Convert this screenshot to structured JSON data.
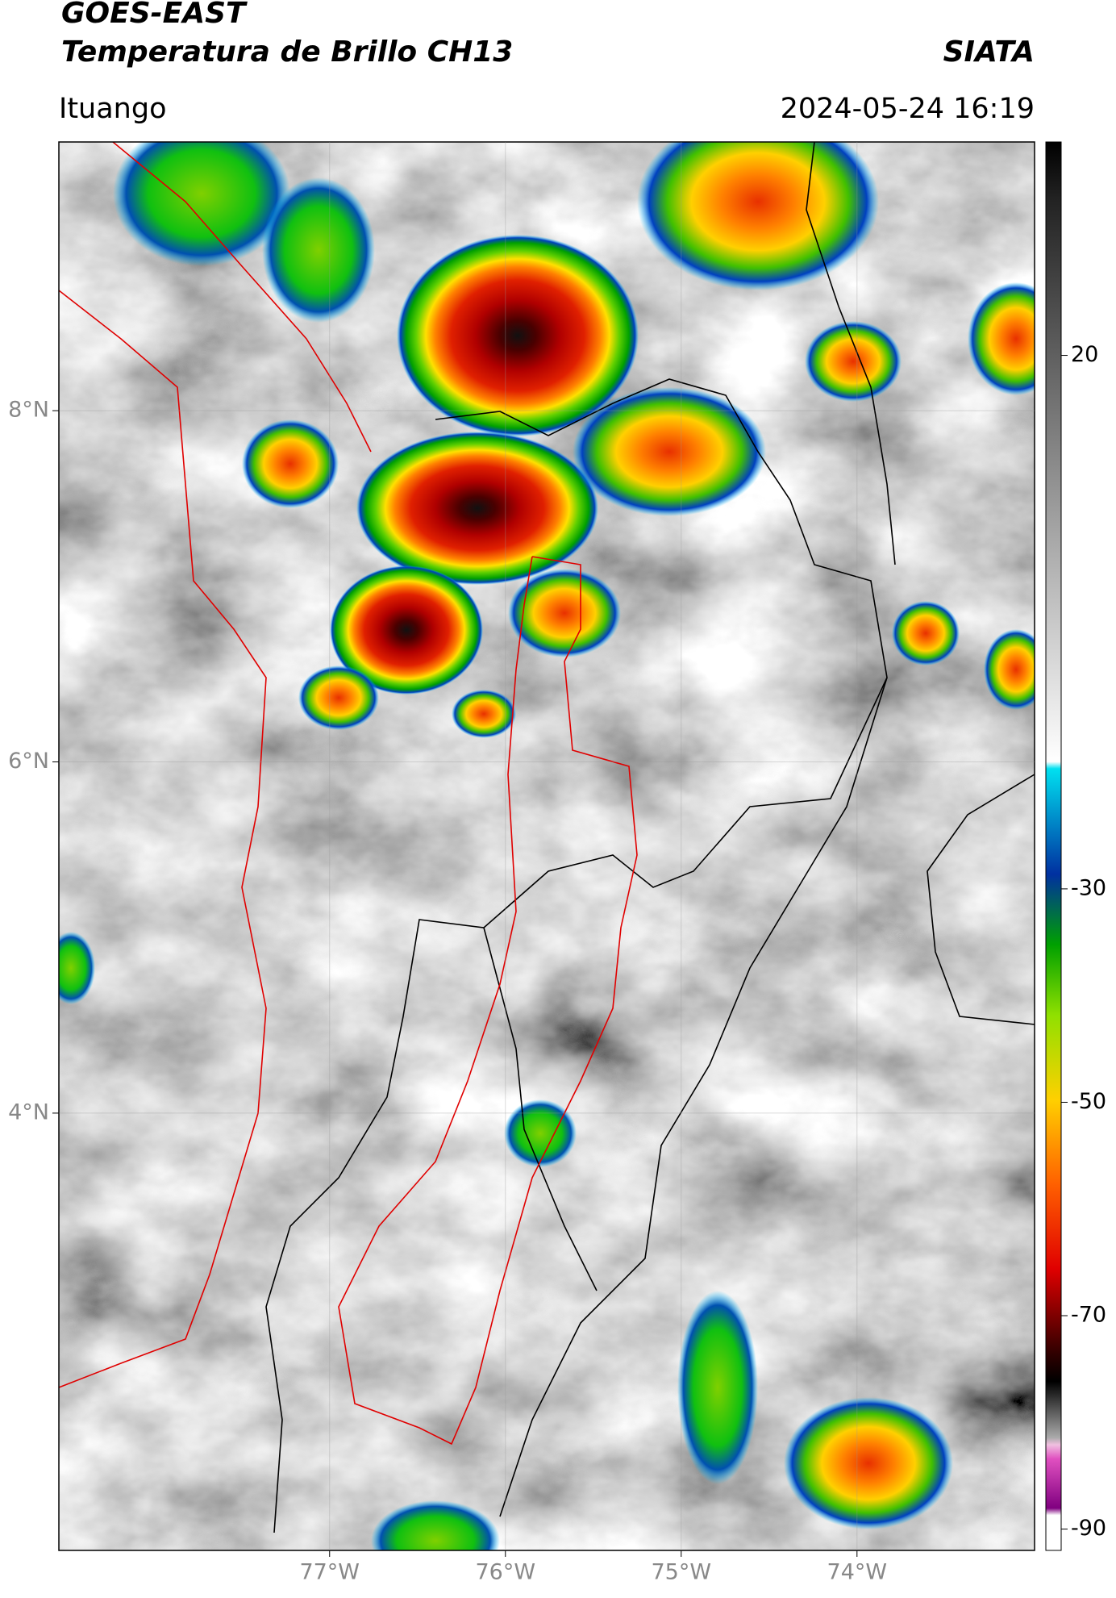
{
  "header": {
    "title": "GOES-EAST",
    "subtitle": "Temperatura de Brillo CH13",
    "source": "SIATA",
    "location": "Ituango",
    "datetime": "2024-05-24 16:19"
  },
  "map": {
    "xlim": [
      -78.54,
      -72.99
    ],
    "ylim": [
      1.51,
      9.53
    ],
    "xticks": [
      {
        "value": -77,
        "label": "77°W"
      },
      {
        "value": -76,
        "label": "76°W"
      },
      {
        "value": -75,
        "label": "75°W"
      },
      {
        "value": -74,
        "label": "74°W"
      }
    ],
    "yticks": [
      {
        "value": 8,
        "label": "8°N"
      },
      {
        "value": 6,
        "label": "6°N"
      },
      {
        "value": 4,
        "label": "4°N"
      }
    ],
    "colorbar": {
      "lim": [
        -92,
        40
      ],
      "ticks": [
        20,
        -30,
        -50,
        -70,
        -90
      ]
    }
  }
}
